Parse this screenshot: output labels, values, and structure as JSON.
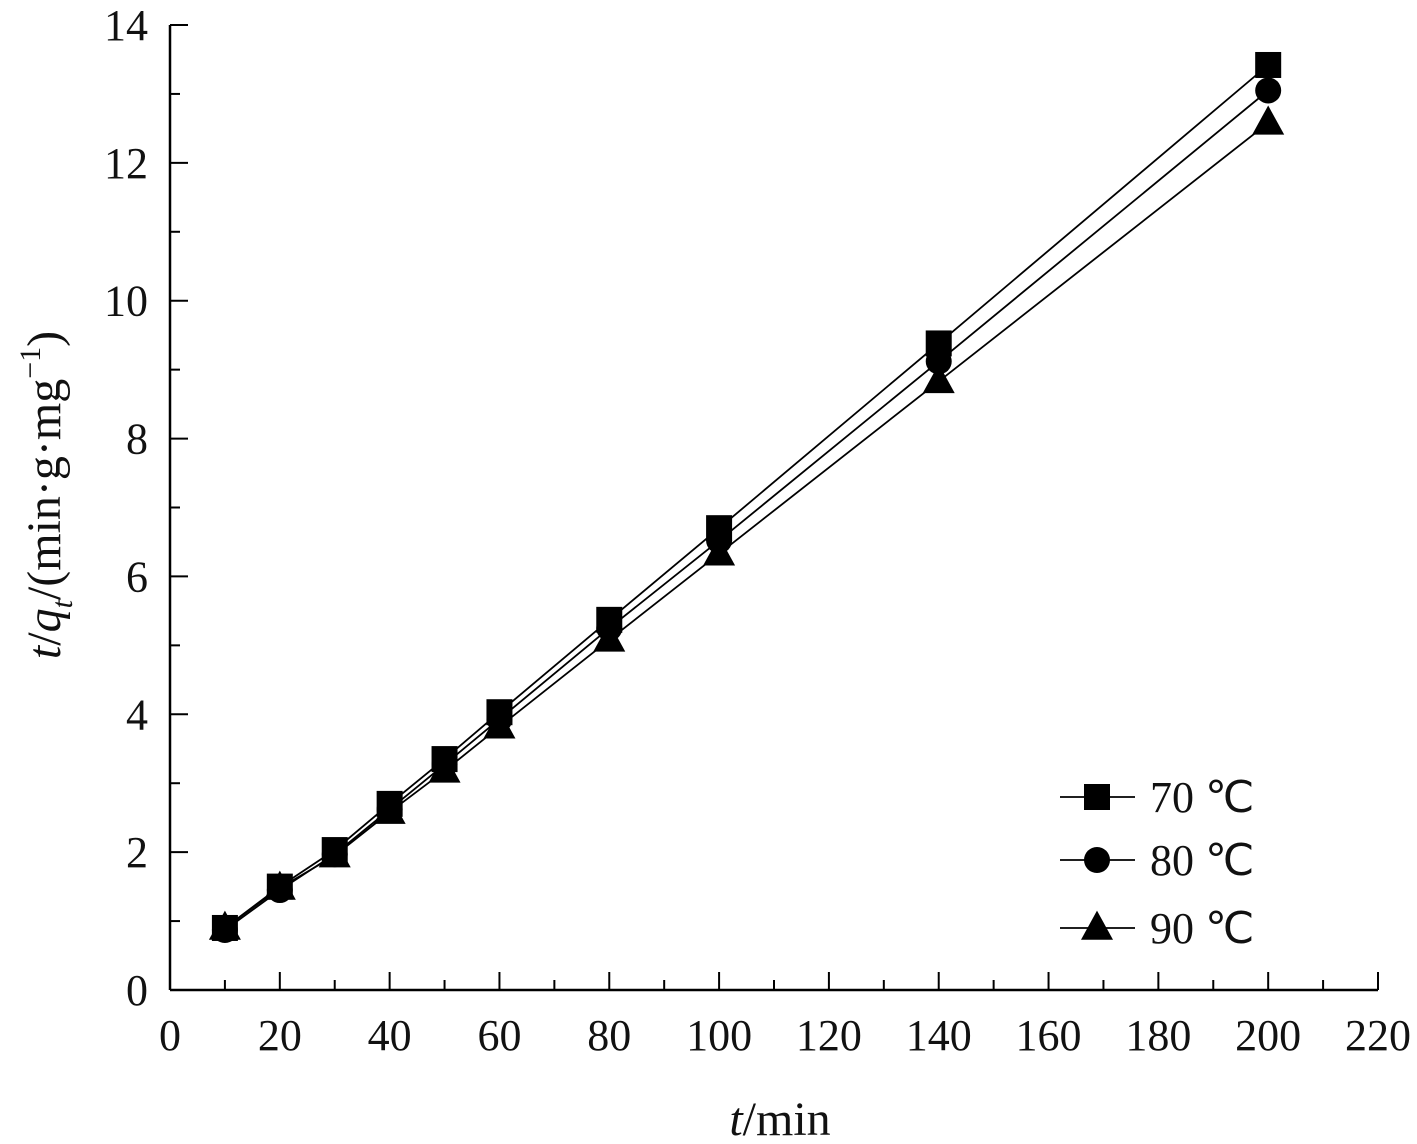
{
  "chart_data": {
    "type": "line",
    "title": "",
    "xlabel": {
      "var": "t",
      "unit": "/min"
    },
    "ylabel": {
      "var": "t",
      "sep": "/",
      "var2": "q",
      "sub": "t",
      "unit": "/(min·g·mg",
      "sup": "−1",
      "close": ")"
    },
    "xlim": [
      0,
      220
    ],
    "ylim": [
      0,
      14
    ],
    "x_ticks": [
      "0",
      "20",
      "40",
      "60",
      "80",
      "100",
      "120",
      "140",
      "160",
      "180",
      "200",
      "220"
    ],
    "y_ticks": [
      "0",
      "2",
      "4",
      "6",
      "8",
      "10",
      "12",
      "14"
    ],
    "x": [
      10,
      20,
      30,
      40,
      50,
      60,
      80,
      100,
      140,
      200
    ],
    "series": [
      {
        "name": "70 ℃",
        "marker": "square",
        "values": [
          0.9,
          1.5,
          2.03,
          2.7,
          3.35,
          4.03,
          5.37,
          6.7,
          9.38,
          13.42
        ]
      },
      {
        "name": "80 ℃",
        "marker": "circle",
        "values": [
          0.87,
          1.45,
          1.97,
          2.62,
          3.27,
          3.93,
          5.25,
          6.52,
          9.12,
          13.05
        ]
      },
      {
        "name": "90 ℃",
        "marker": "triangle",
        "values": [
          0.9,
          1.48,
          1.95,
          2.58,
          3.18,
          3.82,
          5.08,
          6.33,
          8.83,
          12.58
        ]
      }
    ],
    "legend_position": "bottom-right",
    "grid": false,
    "color": "#000000"
  }
}
